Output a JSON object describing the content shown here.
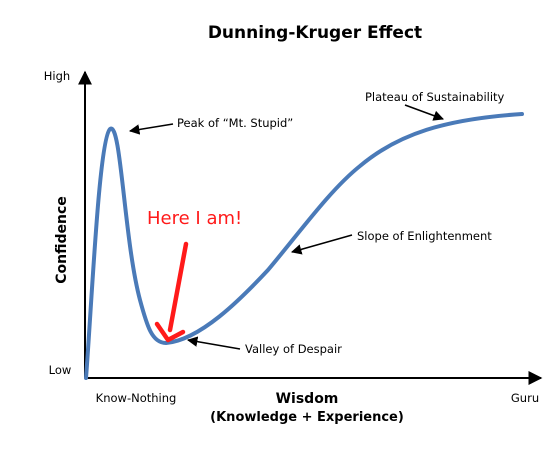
{
  "title": "Dunning-Kruger Effect",
  "y_axis": {
    "label": "Confidence",
    "high": "High",
    "low": "Low"
  },
  "x_axis": {
    "label": "Wisdom",
    "sublabel": "(Knowledge  +  Experience)",
    "start": "Know-Nothing",
    "end": "Guru"
  },
  "annotations": {
    "peak": "Peak of “Mt. Stupid”",
    "valley": "Valley of Despair",
    "slope": "Slope of Enlightenment",
    "plateau": "Plateau of Sustainability"
  },
  "callout": {
    "text": "Here I am!",
    "color": "#ff1a1a"
  },
  "colors": {
    "curve": "#4a7ab8",
    "axis": "#000000"
  }
}
